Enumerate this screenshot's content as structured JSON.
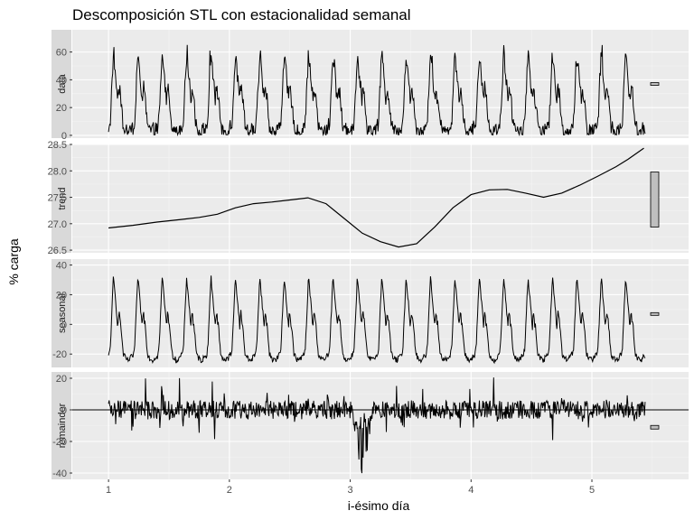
{
  "chart_data": {
    "type": "line",
    "title": "Descomposición STL con estacionalidad semanal",
    "xlabel": "i-ésimo día",
    "ylabel": "% carga",
    "xlim": [
      0.7,
      5.8
    ],
    "x_ticks": [
      "1",
      "2",
      "3",
      "4",
      "5"
    ],
    "grid": true,
    "facets": [
      {
        "name": "data",
        "ylim": [
          -2,
          76
        ],
        "y_ticks": [
          "0",
          "20",
          "40",
          "60"
        ],
        "range_bar_height": 3,
        "zero_line": false,
        "series": {
          "kind": "seasonal_plus_remainder",
          "x_start": 1.0,
          "x_end": 5.44,
          "cycles": 22,
          "offset": 26.5,
          "amplitude": 1.0,
          "noise": 5
        }
      },
      {
        "name": "trend",
        "ylim": [
          26.45,
          28.5
        ],
        "y_ticks": [
          "26.5",
          "27.0",
          "27.5",
          "28.0",
          "28.5"
        ],
        "range_bar_height": 61,
        "zero_line": false,
        "series": {
          "kind": "points",
          "x": [
            1.0,
            1.2,
            1.4,
            1.6,
            1.75,
            1.9,
            2.05,
            2.2,
            2.35,
            2.5,
            2.65,
            2.8,
            2.95,
            3.1,
            3.25,
            3.4,
            3.55,
            3.7,
            3.85,
            4.0,
            4.15,
            4.3,
            4.45,
            4.6,
            4.75,
            4.9,
            5.05,
            5.2,
            5.3,
            5.43
          ],
          "y": [
            26.92,
            26.97,
            27.03,
            27.08,
            27.12,
            27.18,
            27.3,
            27.38,
            27.41,
            27.45,
            27.49,
            27.38,
            27.1,
            26.82,
            26.66,
            26.56,
            26.62,
            26.94,
            27.3,
            27.55,
            27.64,
            27.65,
            27.58,
            27.5,
            27.58,
            27.73,
            27.9,
            28.08,
            28.22,
            28.43
          ]
        }
      },
      {
        "name": "seasonal",
        "ylim": [
          -29,
          44
        ],
        "y_ticks": [
          "-20",
          "0",
          "20",
          "40"
        ],
        "range_bar_height": 3,
        "zero_line": false,
        "series": {
          "kind": "seasonal",
          "x_start": 1.0,
          "x_end": 5.44,
          "cycles": 22,
          "offset": 0,
          "amplitude": 1.0,
          "noise": 0
        }
      },
      {
        "name": "remainder",
        "ylim": [
          -44,
          24
        ],
        "y_ticks": [
          "-40",
          "-20",
          "0",
          "20"
        ],
        "range_bar_height": 4,
        "zero_line": true,
        "series": {
          "kind": "remainder",
          "x_start": 1.0,
          "x_end": 5.44,
          "noise": 6,
          "dip_start": 3.02,
          "dip_end": 3.18,
          "dip_depth": -42
        }
      }
    ]
  }
}
